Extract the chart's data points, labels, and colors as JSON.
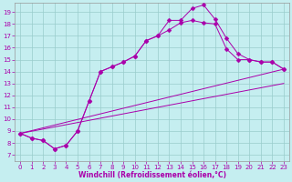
{
  "xlabel": "Windchill (Refroidissement éolien,°C)",
  "bg_color": "#c5eef0",
  "line_color": "#aa00aa",
  "grid_color": "#99cccc",
  "xlim": [
    -0.5,
    23.5
  ],
  "ylim": [
    6.5,
    19.8
  ],
  "xticks": [
    0,
    1,
    2,
    3,
    4,
    5,
    6,
    7,
    8,
    9,
    10,
    11,
    12,
    13,
    14,
    15,
    16,
    17,
    18,
    19,
    20,
    21,
    22,
    23
  ],
  "yticks": [
    7,
    8,
    9,
    10,
    11,
    12,
    13,
    14,
    15,
    16,
    17,
    18,
    19
  ],
  "line1_x": [
    0,
    1,
    2,
    3,
    4,
    5,
    6,
    7,
    8,
    9,
    10,
    11,
    12,
    13,
    14,
    15,
    16,
    17,
    18,
    19,
    20,
    21,
    22,
    23
  ],
  "line1_y": [
    8.8,
    8.4,
    8.2,
    7.5,
    7.8,
    9.0,
    11.5,
    14.0,
    14.4,
    14.8,
    15.3,
    16.6,
    17.0,
    17.5,
    18.1,
    18.3,
    18.1,
    18.0,
    15.9,
    15.0,
    15.0,
    14.8,
    14.8,
    14.2
  ],
  "line2_x": [
    0,
    1,
    2,
    3,
    4,
    5,
    6,
    7,
    8,
    9,
    10,
    11,
    12,
    13,
    14,
    15,
    16,
    17,
    18,
    19,
    20,
    21,
    22,
    23
  ],
  "line2_y": [
    8.8,
    8.4,
    8.2,
    7.5,
    7.8,
    9.0,
    11.5,
    14.0,
    14.4,
    14.8,
    15.3,
    16.6,
    17.0,
    18.3,
    18.3,
    19.3,
    19.6,
    18.4,
    16.8,
    15.5,
    15.0,
    14.8,
    14.8,
    14.2
  ],
  "line3_x": [
    0,
    23
  ],
  "line3_y": [
    8.8,
    14.2
  ],
  "line4_x": [
    0,
    23
  ],
  "line4_y": [
    8.8,
    13.0
  ],
  "marker": "D",
  "marker_size": 2.5,
  "tick_fontsize": 5,
  "xlabel_fontsize": 5.5
}
